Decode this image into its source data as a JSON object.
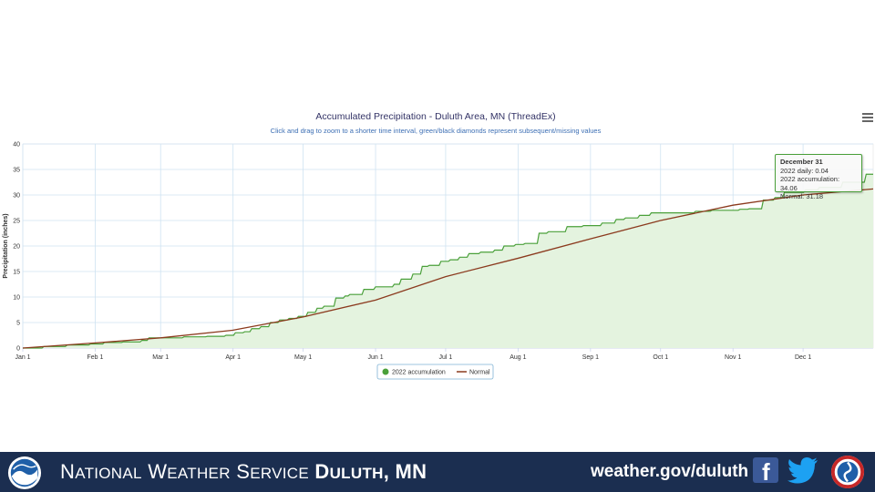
{
  "chart_data": {
    "type": "area",
    "title": "Accumulated Precipitation - Duluth Area, MN (ThreadEx)",
    "subtitle": "Click and drag to zoom to a shorter time interval, green/black diamonds represent subsequent/missing values",
    "ylabel": "Precipitation (inches)",
    "xlabel": "",
    "ylim": [
      0,
      40
    ],
    "yticks": [
      0,
      5,
      10,
      15,
      20,
      25,
      30,
      35,
      40
    ],
    "xlim": [
      1,
      365
    ],
    "xticks": [
      {
        "day": 1,
        "label": "Jan 1"
      },
      {
        "day": 32,
        "label": "Feb 1"
      },
      {
        "day": 60,
        "label": "Mar 1"
      },
      {
        "day": 91,
        "label": "Apr 1"
      },
      {
        "day": 121,
        "label": "May 1"
      },
      {
        "day": 152,
        "label": "Jun 1"
      },
      {
        "day": 182,
        "label": "Jul 1"
      },
      {
        "day": 213,
        "label": "Aug 1"
      },
      {
        "day": 244,
        "label": "Sep 1"
      },
      {
        "day": 274,
        "label": "Oct 1"
      },
      {
        "day": 305,
        "label": "Nov 1"
      },
      {
        "day": 335,
        "label": "Dec 1"
      }
    ],
    "grid": true,
    "legend_position": "bottom",
    "series": [
      {
        "name": "2022 accumulation",
        "color": "#4aa03a",
        "fill": "#e4f3df",
        "style": "step",
        "x": [
          1,
          10,
          20,
          30,
          36,
          44,
          52,
          55,
          62,
          70,
          80,
          88,
          92,
          96,
          99,
          103,
          107,
          111,
          115,
          119,
          123,
          127,
          130,
          135,
          139,
          141,
          147,
          152,
          155,
          160,
          163,
          168,
          172,
          175,
          180,
          184,
          188,
          192,
          197,
          203,
          207,
          212,
          216,
          222,
          226,
          234,
          241,
          249,
          255,
          259,
          265,
          270,
          281,
          289,
          296,
          300,
          308,
          312,
          318,
          323,
          327,
          336,
          342,
          352,
          362,
          365
        ],
        "y": [
          0.0,
          0.3,
          0.6,
          0.8,
          1.1,
          1.2,
          1.5,
          2.0,
          2.0,
          2.2,
          2.3,
          2.5,
          3.0,
          3.2,
          3.8,
          4.2,
          5.0,
          5.5,
          5.8,
          6.2,
          7.0,
          7.8,
          8.2,
          9.8,
          10.2,
          10.5,
          11.5,
          12.0,
          12.0,
          12.5,
          13.5,
          14.5,
          16.0,
          16.2,
          17.0,
          17.3,
          17.8,
          18.5,
          18.8,
          19.2,
          20.0,
          20.3,
          20.5,
          22.5,
          22.8,
          23.8,
          24.0,
          24.5,
          25.2,
          25.5,
          26.0,
          26.5,
          26.5,
          26.8,
          27.0,
          27.0,
          27.2,
          27.3,
          29.0,
          29.5,
          30.5,
          31.0,
          31.5,
          32.5,
          34.06,
          34.06
        ]
      },
      {
        "name": "Normal",
        "color": "#8b3a1e",
        "style": "line",
        "x": [
          1,
          32,
          60,
          91,
          121,
          152,
          182,
          213,
          244,
          274,
          305,
          335,
          365
        ],
        "y": [
          0.0,
          1.0,
          2.0,
          3.5,
          6.1,
          9.4,
          14.0,
          17.6,
          21.4,
          25.0,
          28.0,
          30.0,
          31.18
        ]
      }
    ]
  },
  "tooltip": {
    "date": "December 31",
    "daily": "2022 daily: 0.04",
    "accumulation": "2022 accumulation: 34.06",
    "normal": "Normal: 31.18"
  },
  "footer": {
    "org_first": "N",
    "org_rest1": "ATIONAL",
    "org_first2": "W",
    "org_rest2": "EATHER",
    "org_first3": "S",
    "org_rest3": "ERVICE",
    "location_d": "D",
    "location_rest": "ULUTH",
    "location_state": "MN",
    "website": "weather.gov/duluth",
    "bar_color": "#1b2e50"
  },
  "icons": {
    "menu": "hamburger-menu-icon",
    "facebook": "facebook-icon",
    "twitter": "twitter-icon",
    "noaa": "noaa-logo",
    "nws": "nws-logo"
  }
}
